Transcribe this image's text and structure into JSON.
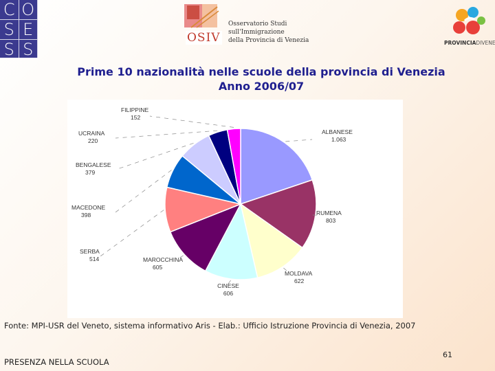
{
  "header": {
    "coses_letters": [
      "C",
      "O",
      "S",
      "E",
      "S",
      "S"
    ],
    "osiv": {
      "wordmark": "OSIV",
      "lines": [
        "Osservatorio Studi",
        "sull'Immigrazione",
        "della Provincia di Venezia"
      ]
    },
    "provincia": {
      "bold": "PROVINCIA",
      "thin": "DIVENEZIA"
    }
  },
  "title_line1": "Prime 10 nazionalità nelle scuole della provincia di Venezia",
  "title_line2": "Anno 2006/07",
  "source": "Fonte: MPI-USR del Veneto, sistema informativo Aris - Elab.: Ufficio Istruzione Provincia di Venezia, 2007",
  "footer": "PRESENZA NELLA SCUOLA",
  "page_number": "61",
  "colors": {
    "title": "#1f1f8f",
    "coses_bg": "#3b3a8f"
  },
  "chart_data": {
    "type": "pie",
    "title": "",
    "slices": [
      {
        "label": "ALBANESE",
        "value_text": "1.063",
        "value": 1063,
        "color": "#9999ff"
      },
      {
        "label": "RUMENA",
        "value_text": "803",
        "value": 803,
        "color": "#993366"
      },
      {
        "label": "MOLDAVA",
        "value_text": "622",
        "value": 622,
        "color": "#ffffcc"
      },
      {
        "label": "CINESE",
        "value_text": "606",
        "value": 606,
        "color": "#ccffff"
      },
      {
        "label": "MAROCCHINA",
        "value_text": "605",
        "value": 605,
        "color": "#660066"
      },
      {
        "label": "SERBA",
        "value_text": "514",
        "value": 514,
        "color": "#ff8080"
      },
      {
        "label": "MACEDONE",
        "value_text": "398",
        "value": 398,
        "color": "#0066cc"
      },
      {
        "label": "BENGALESE",
        "value_text": "379",
        "value": 379,
        "color": "#ccccff"
      },
      {
        "label": "UCRAINA",
        "value_text": "220",
        "value": 220,
        "color": "#000080"
      },
      {
        "label": "FILIPPINE",
        "value_text": "152",
        "value": 152,
        "color": "#ff00ff"
      }
    ]
  }
}
